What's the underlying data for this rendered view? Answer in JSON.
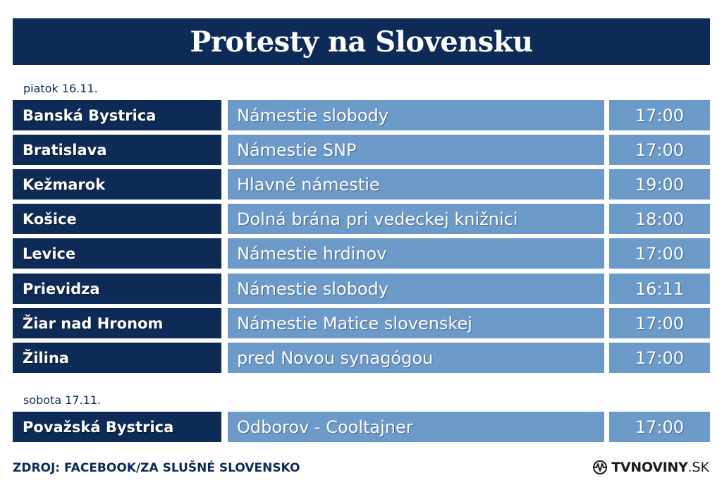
{
  "title": "Protesty na Slovensku",
  "days": [
    {
      "label": "piatok 16.11.",
      "rows": [
        {
          "city": "Banská Bystrica",
          "place": "Námestie slobody",
          "time": "17:00"
        },
        {
          "city": "Bratislava",
          "place": "Námestie SNP",
          "time": "17:00"
        },
        {
          "city": "Kežmarok",
          "place": "Hlavné námestie",
          "time": "19:00"
        },
        {
          "city": "Košice",
          "place": "Dolná brána pri vedeckej knižnici",
          "time": "18:00"
        },
        {
          "city": "Levice",
          "place": "Námestie hrdinov",
          "time": "17:00"
        },
        {
          "city": "Prievidza",
          "place": "Námestie slobody",
          "time": "16:11"
        },
        {
          "city": "Žiar nad Hronom",
          "place": "Námestie Matice slovenskej",
          "time": "17:00"
        },
        {
          "city": "Žilina",
          "place": "pred Novou synagógou",
          "time": "17:00"
        }
      ]
    },
    {
      "label": "sobota 17.11.",
      "rows": [
        {
          "city": "Považská Bystrica",
          "place": "Odborov - Cooltajner",
          "time": "17:00"
        }
      ]
    }
  ],
  "source": "ZDROJ: FACEBOOK/ZA SLUŠNÉ SLOVENSKO",
  "logo": {
    "brand": "TVNOVINY",
    "tld": ".SK",
    "icon": "wave-signal-icon"
  },
  "colors": {
    "dark": "#0d2b56",
    "light": "#6c9ac9",
    "text": "#ffffff"
  }
}
